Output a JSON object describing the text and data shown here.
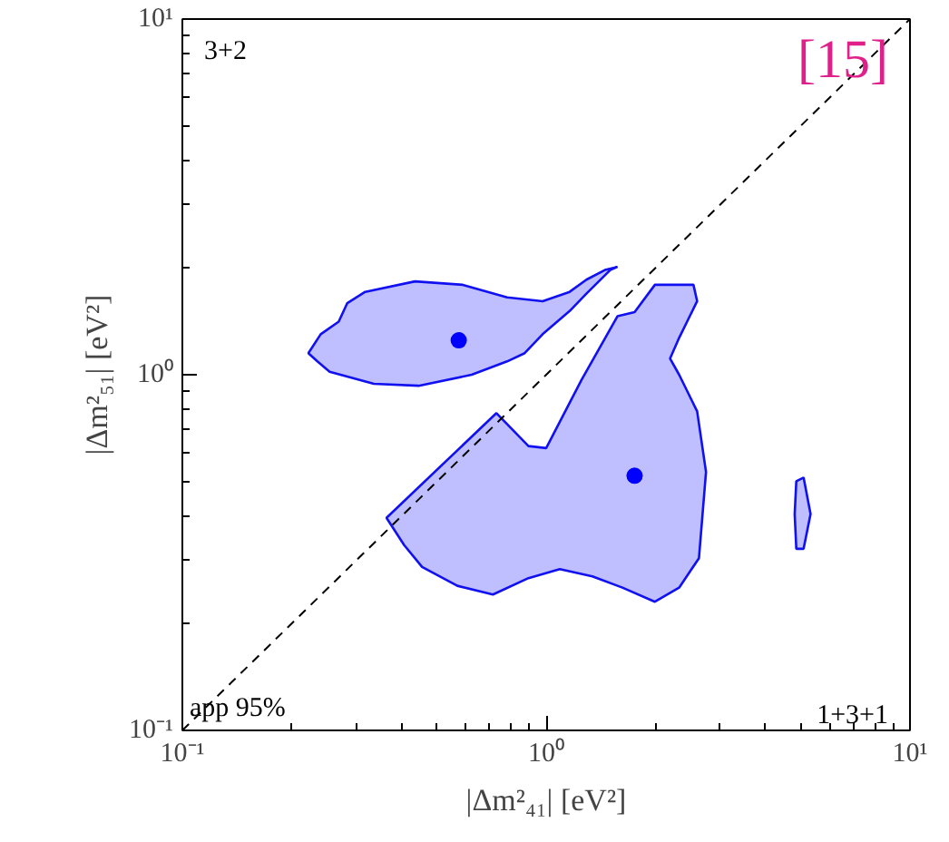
{
  "chart_data": {
    "type": "area",
    "xlabel": "|Δm²₄₁| [eV²]",
    "ylabel": "|Δm²₅₁| [eV²]",
    "log": "xy",
    "grid": false,
    "xlim": [
      0.1,
      10
    ],
    "ylim": [
      0.1,
      10
    ],
    "xticks": [
      {
        "value": 0.1,
        "label": "10⁻¹"
      },
      {
        "value": 1,
        "label": "10⁰"
      },
      {
        "value": 10,
        "label": "10¹"
      }
    ],
    "yticks": [
      {
        "value": 0.1,
        "label": "10⁻¹"
      },
      {
        "value": 1,
        "label": "10⁰"
      },
      {
        "value": 10,
        "label": "10¹"
      }
    ],
    "annotations": [
      "3+2",
      "[15]",
      "app 95%",
      "1+3+1"
    ],
    "series": [
      {
        "color": "#bfbfff",
        "x": [
          0.222,
          0.24,
          0.269,
          0.284,
          0.318,
          0.436,
          0.59,
          0.781,
          0.978,
          1.16,
          1.29,
          1.45,
          1.57,
          1.5,
          1.29,
          1.16,
          0.978,
          0.873,
          0.781,
          0.624,
          0.446,
          0.336,
          0.254,
          0.235
        ],
        "values": [
          1.15,
          1.3,
          1.41,
          1.59,
          1.71,
          1.83,
          1.79,
          1.65,
          1.61,
          1.71,
          1.85,
          1.97,
          2.01,
          1.97,
          1.69,
          1.51,
          1.3,
          1.15,
          1.09,
          1.0,
          0.931,
          0.943,
          1.02,
          1.09
        ]
      },
      {
        "color": "#bfbfff",
        "x": [
          0.73,
          0.894,
          1.0,
          1.25,
          1.57,
          1.75,
          1.99,
          2.54,
          2.6,
          2.32,
          2.19,
          2.32,
          2.6,
          2.75,
          2.63,
          2.32,
          1.99,
          1.62,
          1.34,
          1.09,
          0.894,
          0.714,
          0.57,
          0.456,
          0.407,
          0.364
        ],
        "values": [
          0.78,
          0.63,
          0.622,
          0.966,
          1.46,
          1.5,
          1.79,
          1.79,
          1.61,
          1.27,
          1.11,
          1.0,
          0.789,
          0.533,
          0.305,
          0.252,
          0.23,
          0.252,
          0.271,
          0.284,
          0.268,
          0.241,
          0.255,
          0.288,
          0.332,
          0.396
        ]
      },
      {
        "color": "#bfbfff",
        "x": [
          5.1,
          5.33,
          5.1,
          4.87,
          4.82,
          4.87
        ],
        "values": [
          0.514,
          0.406,
          0.324,
          0.324,
          0.406,
          0.502
        ]
      },
      {
        "type": "scatter",
        "color": "#0000ff",
        "marker": "circle",
        "x": [
          0.575,
          1.75
        ],
        "values": [
          1.25,
          0.52
        ]
      },
      {
        "type": "line",
        "color": "#000000",
        "line_style": "dashed",
        "x": [
          0.1,
          10
        ],
        "values": [
          0.1,
          10
        ]
      }
    ]
  }
}
